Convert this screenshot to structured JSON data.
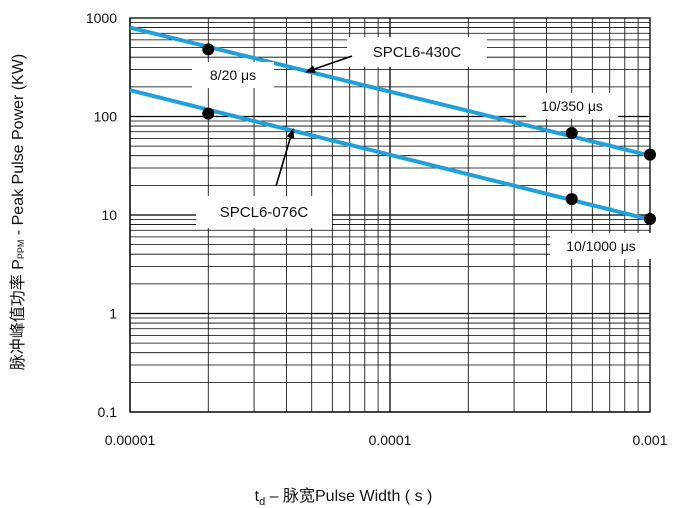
{
  "chart_data": {
    "type": "line",
    "xscale": "log",
    "yscale": "log",
    "xlim": [
      1e-05,
      0.001
    ],
    "ylim": [
      0.1,
      1000
    ],
    "xticks": [
      "0.00001",
      "0.0001",
      "0.001"
    ],
    "yticks": [
      "0.1",
      "1",
      "10",
      "100",
      "1000"
    ],
    "xlabel": {
      "pre": "t",
      "sub": "d",
      "post": " – 脉宽Pulse Width ( s )"
    },
    "ylabel": {
      "pre": "脉冲峰值功率 P",
      "sub": "PPM",
      "post": " - Peak Pulse Power (KW)"
    },
    "grid": true,
    "line_color": "#1fa0dc",
    "series": [
      {
        "name": "SPCL6-430C",
        "x": [
          1e-05,
          0.001
        ],
        "y": [
          800,
          40
        ]
      },
      {
        "name": "SPCL6-076C",
        "x": [
          1e-05,
          0.001
        ],
        "y": [
          185,
          9
        ]
      }
    ],
    "markers": [
      {
        "x": 2e-05,
        "y": 480
      },
      {
        "x": 2e-05,
        "y": 107
      },
      {
        "x": 0.0005,
        "y": 68
      },
      {
        "x": 0.0005,
        "y": 14.5
      },
      {
        "x": 0.001,
        "y": 41
      },
      {
        "x": 0.001,
        "y": 9.1
      }
    ],
    "annotations": [
      {
        "text": "8/20 μs"
      },
      {
        "text": "10/350 μs"
      },
      {
        "text": "10/1000 μs"
      },
      {
        "text": "SPCL6-430C"
      },
      {
        "text": "SPCL6-076C"
      }
    ]
  }
}
